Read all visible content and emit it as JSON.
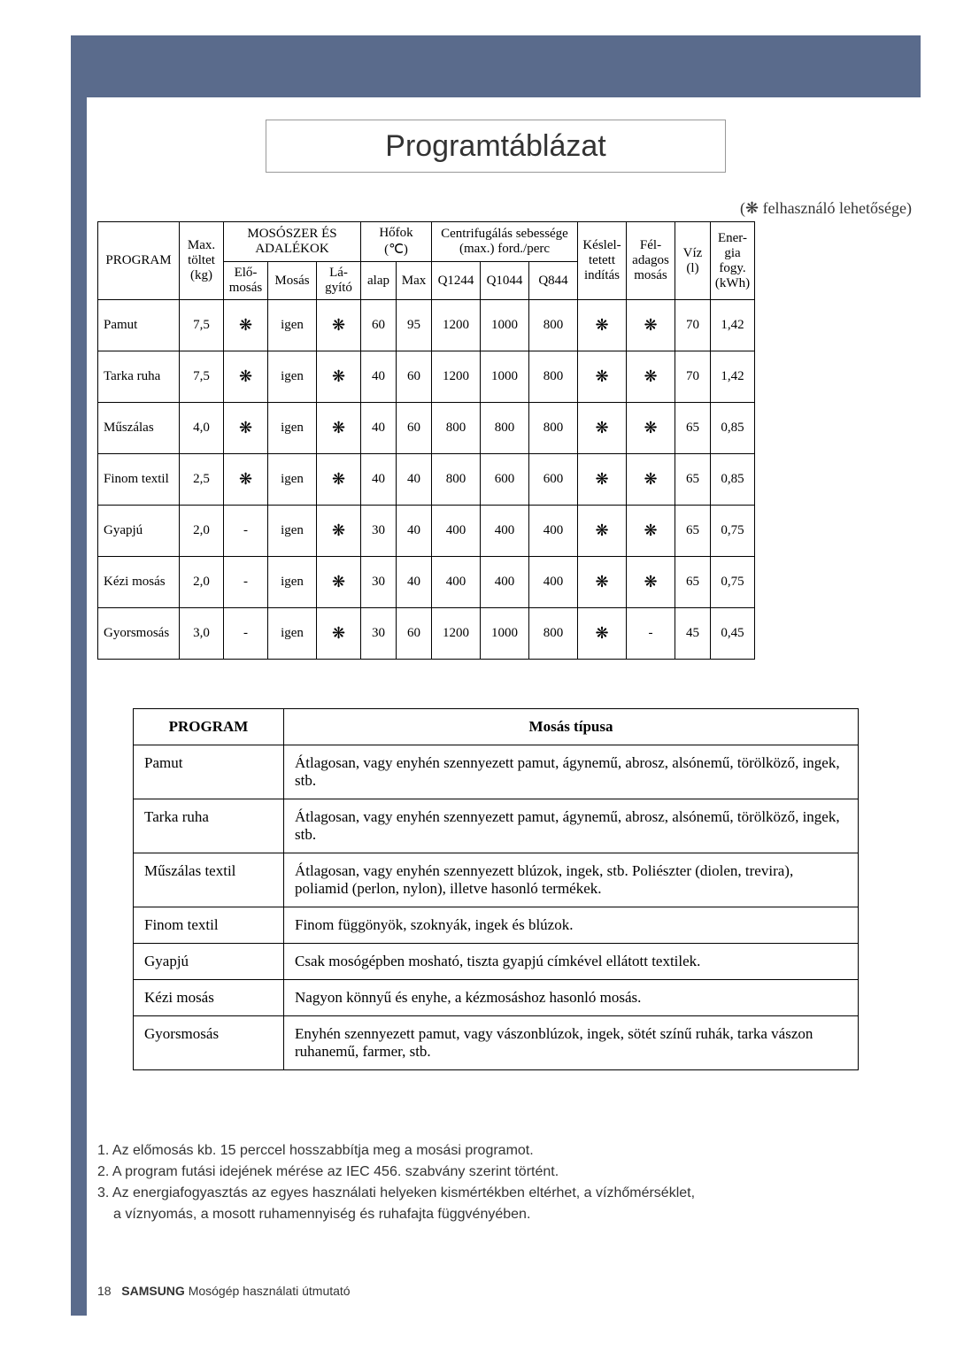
{
  "title": "Programtáblázat",
  "legend_prefix": "(",
  "legend_star": "❋",
  "legend_text": " felhasználó lehetősége)",
  "colors": {
    "bar": "#5a6b8c",
    "border": "#000000",
    "text": "#000000",
    "bg": "#ffffff"
  },
  "t1": {
    "h": {
      "program": "PROGRAM",
      "max1": "Max.",
      "max2": "töltet",
      "max3": "(kg)",
      "moso": "MOSÓSZER ÉS ADALÉKOK",
      "elo1": "Elő-",
      "elo2": "mosás",
      "mosas": "Mosás",
      "la1": "Lá-",
      "la2": "gyító",
      "hofok1": "Hőfok",
      "hofok2": "(℃)",
      "alap": "alap",
      "max": "Max",
      "centr1": "Centrifugálás sebessége",
      "centr2": "(max.) ford./perc",
      "q1244": "Q1244",
      "q1044": "Q1044",
      "q844": "Q844",
      "kes1": "Késlel-",
      "kes2": "tetett",
      "kes3": "indítás",
      "fel1": "Fél-",
      "fel2": "adagos",
      "fel3": "mosás",
      "viz1": "Víz",
      "viz2": "(l)",
      "ener1": "Ener-",
      "ener2": "gia",
      "ener3": "fogy.",
      "ener4": "(kWh)"
    },
    "rows": [
      {
        "p": "Pamut",
        "kg": "7,5",
        "elo": "❋",
        "mosas": "igen",
        "la": "❋",
        "alap": "60",
        "max": "95",
        "q1244": "1200",
        "q1044": "1000",
        "q844": "800",
        "kes": "❋",
        "fel": "❋",
        "viz": "70",
        "en": "1,42"
      },
      {
        "p": "Tarka ruha",
        "kg": "7,5",
        "elo": "❋",
        "mosas": "igen",
        "la": "❋",
        "alap": "40",
        "max": "60",
        "q1244": "1200",
        "q1044": "1000",
        "q844": "800",
        "kes": "❋",
        "fel": "❋",
        "viz": "70",
        "en": "1,42"
      },
      {
        "p": "Műszálas",
        "kg": "4,0",
        "elo": "❋",
        "mosas": "igen",
        "la": "❋",
        "alap": "40",
        "max": "60",
        "q1244": "800",
        "q1044": "800",
        "q844": "800",
        "kes": "❋",
        "fel": "❋",
        "viz": "65",
        "en": "0,85"
      },
      {
        "p": "Finom textil",
        "kg": "2,5",
        "elo": "❋",
        "mosas": "igen",
        "la": "❋",
        "alap": "40",
        "max": "40",
        "q1244": "800",
        "q1044": "600",
        "q844": "600",
        "kes": "❋",
        "fel": "❋",
        "viz": "65",
        "en": "0,85"
      },
      {
        "p": "Gyapjú",
        "kg": "2,0",
        "elo": "-",
        "mosas": "igen",
        "la": "❋",
        "alap": "30",
        "max": "40",
        "q1244": "400",
        "q1044": "400",
        "q844": "400",
        "kes": "❋",
        "fel": "❋",
        "viz": "65",
        "en": "0,75"
      },
      {
        "p": "Kézi mosás",
        "kg": "2,0",
        "elo": "-",
        "mosas": "igen",
        "la": "❋",
        "alap": "30",
        "max": "40",
        "q1244": "400",
        "q1044": "400",
        "q844": "400",
        "kes": "❋",
        "fel": "❋",
        "viz": "65",
        "en": "0,75"
      },
      {
        "p": "Gyorsmosás",
        "kg": "3,0",
        "elo": "-",
        "mosas": "igen",
        "la": "❋",
        "alap": "30",
        "max": "60",
        "q1244": "1200",
        "q1044": "1000",
        "q844": "800",
        "kes": "❋",
        "fel": "-",
        "viz": "45",
        "en": "0,45"
      }
    ]
  },
  "t2": {
    "h1": "PROGRAM",
    "h2": "Mosás típusa",
    "rows": [
      {
        "p": "Pamut",
        "d": "Átlagosan, vagy enyhén szennyezett pamut, ágynemű, abrosz, alsónemű, törölköző, ingek, stb."
      },
      {
        "p": "Tarka ruha",
        "d": "Átlagosan, vagy enyhén szennyezett pamut, ágynemű, abrosz, alsónemű, törölköző, ingek, stb."
      },
      {
        "p": "Műszálas textil",
        "d": "Átlagosan, vagy enyhén szennyezett blúzok, ingek, stb. Poliészter (diolen, trevira), poliamid (perlon, nylon), illetve hasonló termékek."
      },
      {
        "p": "Finom textil",
        "d": "Finom függönyök, szoknyák, ingek és blúzok."
      },
      {
        "p": "Gyapjú",
        "d": "Csak mosógépben mosható, tiszta gyapjú címkével ellátott textilek."
      },
      {
        "p": "Kézi mosás",
        "d": "Nagyon könnyű és enyhe, a kézmosáshoz hasonló mosás."
      },
      {
        "p": "Gyorsmosás",
        "d": "Enyhén szennyezett pamut, vagy vászonblúzok, ingek, sötét színű ruhák, tarka vászon ruhanemű, farmer, stb."
      }
    ]
  },
  "notes": {
    "n1": "1. Az előmosás kb. 15 perccel hosszabbítja meg a mosási programot.",
    "n2": "2. A program futási idejének mérése az IEC 456. szabvány szerint történt.",
    "n3a": "3. Az energiafogyasztás az egyes használati helyeken kismértékben eltérhet, a vízhőmérséklet,",
    "n3b": "a víznyomás, a mosott ruhamennyiség és ruhafajta függvényében."
  },
  "footer": {
    "page": "18",
    "brand": "SAMSUNG",
    "text": " Mosógép használati útmutató"
  }
}
